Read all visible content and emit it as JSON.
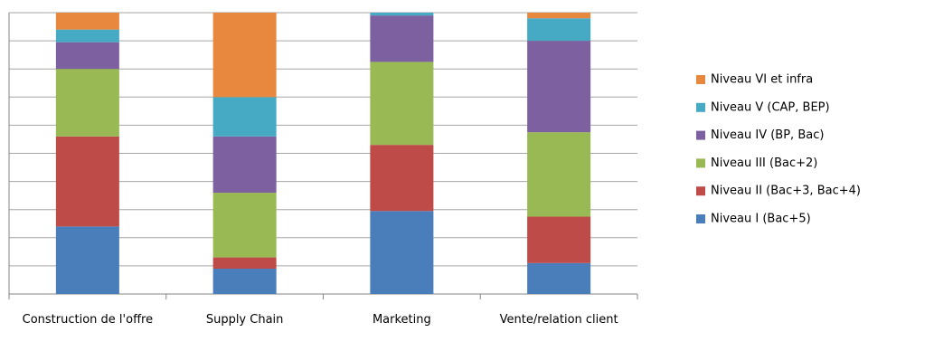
{
  "chart_data": {
    "type": "stacked_bar",
    "categories": [
      "Construction de l'offre",
      "Supply Chain",
      "Marketing",
      "Vente/relation client"
    ],
    "series": [
      {
        "name": "Niveau I (Bac+5)",
        "color": "#4a7ebb",
        "values": [
          24,
          9,
          29.5,
          11
        ]
      },
      {
        "name": "Niveau II (Bac+3, Bac+4)",
        "color": "#be4b48",
        "values": [
          32,
          4,
          23.5,
          16.5
        ]
      },
      {
        "name": "Niveau III (Bac+2)",
        "color": "#98b954",
        "values": [
          24,
          23,
          29.5,
          30
        ]
      },
      {
        "name": "Niveau IV (BP, Bac)",
        "color": "#7d60a0",
        "values": [
          9.5,
          20,
          16.5,
          32.5
        ]
      },
      {
        "name": "Niveau V (CAP, BEP)",
        "color": "#46aac5",
        "values": [
          4.5,
          14,
          1,
          8
        ]
      },
      {
        "name": "Niveau VI et infra",
        "color": "#e8883f",
        "values": [
          6,
          30,
          0,
          2
        ]
      }
    ],
    "ylim": [
      0,
      100
    ],
    "yticks": [
      0,
      10,
      20,
      30,
      40,
      50,
      60,
      70,
      80,
      90,
      100
    ],
    "grid": true,
    "legend": "right"
  }
}
